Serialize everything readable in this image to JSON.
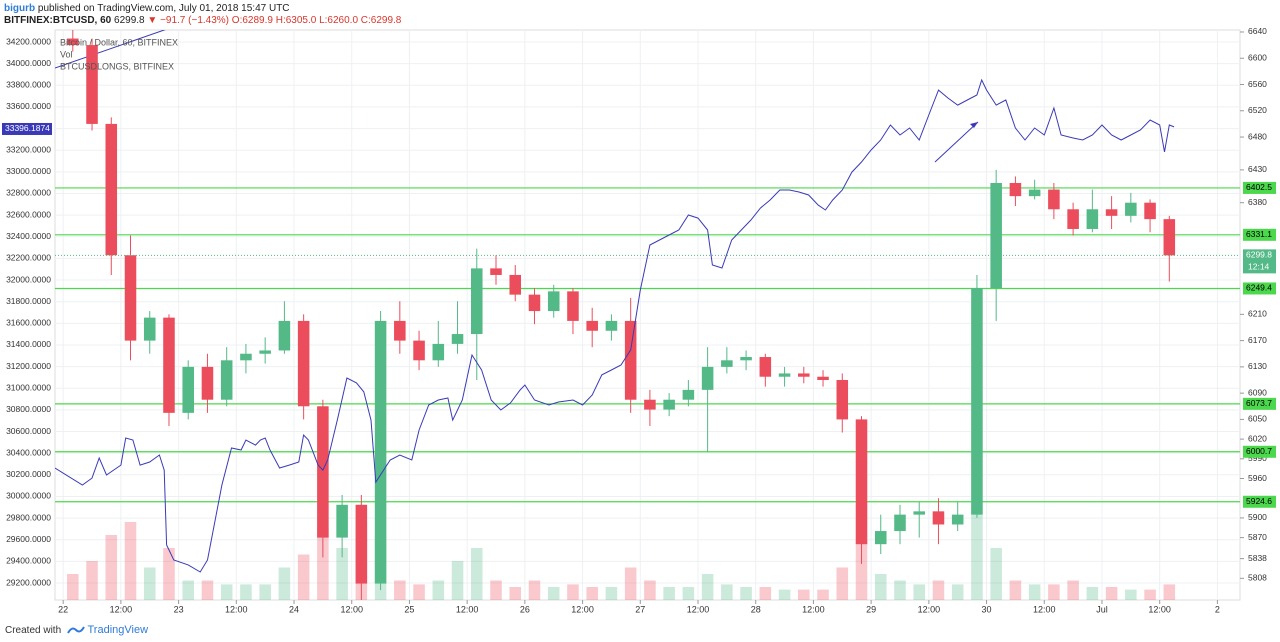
{
  "header": {
    "author": "bigurb",
    "published": "published on TradingView.com, July 01, 2018 15:47 UTC",
    "symbol": "BITFINEX:BTCUSD, 60",
    "last": "6299.8",
    "change": "▼ −91.7 (−1.43%)",
    "ohlc": "O:6289.9 H:6305.0 L:6260.0 C:6299.8"
  },
  "footer": {
    "created": "Created with",
    "brand": "TradingView"
  },
  "chart_data": {
    "type": "candlestick",
    "title": "Bitcoin / Dollar, 60, BITFINEX",
    "volume_label": "Vol",
    "up_color": "#53b987",
    "down_color": "#eb4d5c",
    "grid": true,
    "countdown": "12:14",
    "x": [
      2,
      6,
      10,
      14,
      18,
      22,
      26,
      30,
      34,
      38,
      42,
      46,
      50,
      54,
      58,
      62,
      66,
      70,
      74,
      78,
      82,
      86,
      90,
      94,
      98,
      102,
      106,
      110,
      114,
      118,
      122,
      126,
      130,
      134,
      138,
      142,
      146,
      150,
      154,
      158,
      162,
      166,
      170,
      174,
      178,
      182,
      186,
      190,
      194,
      198,
      202,
      206,
      210,
      214,
      218,
      222,
      226,
      230
    ],
    "open": [
      6630,
      6620,
      6500,
      6300,
      6170,
      6205,
      6060,
      6130,
      6080,
      6140,
      6150,
      6155,
      6200,
      6070,
      5870,
      5920,
      5800,
      6200,
      6170,
      6140,
      6165,
      6180,
      6280,
      6270,
      6240,
      6215,
      6245,
      6200,
      6185,
      6200,
      6080,
      6065,
      6080,
      6095,
      6130,
      6140,
      6145,
      6115,
      6120,
      6115,
      6110,
      6050,
      5860,
      5880,
      5905,
      5910,
      5890,
      5905,
      6250,
      6410,
      6390,
      6400,
      6370,
      6340,
      6370,
      6360,
      6380,
      6355
    ],
    "high": [
      6650,
      6630,
      6510,
      6330,
      6215,
      6210,
      6140,
      6150,
      6160,
      6165,
      6175,
      6230,
      6210,
      6080,
      5935,
      5935,
      6215,
      6230,
      6185,
      6200,
      6230,
      6310,
      6300,
      6285,
      6250,
      6255,
      6250,
      6220,
      6210,
      6235,
      6095,
      6090,
      6110,
      6160,
      6160,
      6155,
      6150,
      6130,
      6130,
      6125,
      6120,
      6055,
      5905,
      5920,
      5925,
      5930,
      5925,
      6270,
      6430,
      6420,
      6415,
      6410,
      6380,
      6400,
      6390,
      6395,
      6385,
      6360
    ],
    "low": [
      6610,
      6490,
      6270,
      6140,
      6150,
      6040,
      6050,
      6060,
      6070,
      6120,
      6135,
      6150,
      6050,
      5840,
      5840,
      5775,
      5790,
      6150,
      6125,
      6130,
      6150,
      6110,
      6255,
      6230,
      6195,
      6205,
      6180,
      6160,
      6170,
      6060,
      6040,
      6055,
      6070,
      6000,
      6120,
      6125,
      6100,
      6100,
      6105,
      6100,
      6030,
      5830,
      5845,
      5860,
      5870,
      5860,
      5880,
      5900,
      6200,
      6375,
      6385,
      6355,
      6330,
      6335,
      6340,
      6350,
      6335,
      6260
    ],
    "close": [
      6620,
      6500,
      6300,
      6170,
      6205,
      6060,
      6130,
      6080,
      6140,
      6150,
      6155,
      6200,
      6070,
      5870,
      5920,
      5800,
      6200,
      6170,
      6140,
      6165,
      6180,
      6280,
      6270,
      6240,
      6215,
      6245,
      6200,
      6185,
      6200,
      6080,
      6065,
      6080,
      6095,
      6130,
      6140,
      6145,
      6115,
      6120,
      6115,
      6110,
      6050,
      5860,
      5880,
      5905,
      5910,
      5890,
      5905,
      6250,
      6410,
      6390,
      6400,
      6370,
      6340,
      6370,
      6360,
      6380,
      6355,
      6299.8
    ],
    "volume": {
      "ylim": [
        0,
        100
      ],
      "values": [
        20,
        30,
        50,
        60,
        25,
        40,
        15,
        15,
        12,
        12,
        12,
        25,
        35,
        55,
        40,
        60,
        50,
        15,
        12,
        15,
        30,
        40,
        15,
        10,
        15,
        10,
        12,
        10,
        10,
        25,
        15,
        10,
        10,
        20,
        12,
        10,
        10,
        8,
        8,
        8,
        25,
        45,
        20,
        15,
        12,
        15,
        12,
        70,
        40,
        15,
        12,
        12,
        15,
        10,
        10,
        8,
        8,
        12
      ]
    },
    "levels": [
      6402.5,
      6331.1,
      6249.4,
      6073.7,
      6000.7,
      5924.6
    ],
    "level_color": "#4cd84c",
    "xlim": [
      -1.7,
      244.7
    ],
    "xticks": [
      {
        "value": 0,
        "label": "22"
      },
      {
        "value": 12,
        "label": "12:00"
      },
      {
        "value": 24,
        "label": "23"
      },
      {
        "value": 36,
        "label": "12:00"
      },
      {
        "value": 48,
        "label": "24"
      },
      {
        "value": 60,
        "label": "12:00"
      },
      {
        "value": 72,
        "label": "25"
      },
      {
        "value": 84,
        "label": "12:00"
      },
      {
        "value": 96,
        "label": "26"
      },
      {
        "value": 108,
        "label": "12:00"
      },
      {
        "value": 120,
        "label": "27"
      },
      {
        "value": 132,
        "label": "12:00"
      },
      {
        "value": 144,
        "label": "28"
      },
      {
        "value": 156,
        "label": "12:00"
      },
      {
        "value": 168,
        "label": "29"
      },
      {
        "value": 180,
        "label": "12:00"
      },
      {
        "value": 192,
        "label": "30"
      },
      {
        "value": 204,
        "label": "12:00"
      },
      {
        "value": 216,
        "label": "Jul"
      },
      {
        "value": 228,
        "label": "12:00"
      },
      {
        "value": 240,
        "label": "2"
      }
    ],
    "ylim": [
      5775,
      6643
    ],
    "yticks": [
      6640,
      6600,
      6560,
      6520,
      6480,
      6430,
      6380,
      6210,
      6170,
      6130,
      6090,
      6050,
      6020,
      5990,
      5960,
      5900,
      5870,
      5838,
      5808
    ],
    "y2lim": [
      29043,
      34311
    ],
    "y2ticks": [
      {
        "value": 34200,
        "label": "34200.0000"
      },
      {
        "value": 34000,
        "label": "34000.0000"
      },
      {
        "value": 33800,
        "label": "33800.0000"
      },
      {
        "value": 33600,
        "label": "33600.0000"
      },
      {
        "value": 33400,
        "label": "33400.0000"
      },
      {
        "value": 33200,
        "label": "33200.0000"
      },
      {
        "value": 33000,
        "label": "33000.0000"
      },
      {
        "value": 32800,
        "label": "32800.0000"
      },
      {
        "value": 32600,
        "label": "32600.0000"
      },
      {
        "value": 32400,
        "label": "32400.0000"
      },
      {
        "value": 32200,
        "label": "32200.0000"
      },
      {
        "value": 32000,
        "label": "32000.0000"
      },
      {
        "value": 31800,
        "label": "31800.0000"
      },
      {
        "value": 31600,
        "label": "31600.0000"
      },
      {
        "value": 31400,
        "label": "31400.0000"
      },
      {
        "value": 31200,
        "label": "31200.0000"
      },
      {
        "value": 31000,
        "label": "31000.0000"
      },
      {
        "value": 30800,
        "label": "30800.0000"
      },
      {
        "value": 30600,
        "label": "30600.0000"
      },
      {
        "value": 30400,
        "label": "30400.0000"
      },
      {
        "value": 30200,
        "label": "30200.0000"
      },
      {
        "value": 30000,
        "label": "30000.0000"
      },
      {
        "value": 29800,
        "label": "29800.0000"
      },
      {
        "value": 29600,
        "label": "29600.0000"
      },
      {
        "value": 29400,
        "label": "29400.0000"
      },
      {
        "value": 29200,
        "label": "29200.0000"
      }
    ],
    "series": [
      {
        "name": "BTCUSDLONGS, BITFINEX",
        "color": "#3a3ab8",
        "axis": "y2",
        "last_value": 33396.1874,
        "x": [
          -1.7,
          4,
          6,
          7.5,
          9,
          12,
          13,
          14.5,
          16,
          18,
          20,
          21,
          21.5,
          23,
          26,
          28.5,
          30,
          33,
          35,
          37,
          38,
          40,
          41,
          42,
          43,
          45,
          47,
          49,
          50,
          51,
          53,
          54,
          55,
          57,
          59,
          61,
          62.5,
          64,
          65,
          68,
          70,
          72.5,
          74,
          76,
          78,
          80,
          81,
          83,
          85,
          87,
          89,
          91,
          93,
          95,
          96,
          98,
          101,
          103,
          106,
          108,
          110,
          112,
          114,
          116,
          118,
          120,
          122,
          124,
          126,
          128,
          130,
          132,
          134,
          135,
          137,
          139,
          141,
          143,
          145,
          147,
          149,
          151,
          153,
          155,
          157,
          158.5,
          160,
          162,
          164,
          166,
          168,
          170,
          172,
          174,
          176,
          178,
          180,
          182,
          184,
          186,
          188,
          190,
          191,
          192,
          194,
          196,
          198,
          200,
          202,
          204,
          206,
          207.5,
          210,
          212,
          214,
          216,
          218,
          220,
          222,
          224,
          226,
          228,
          229,
          230,
          231
        ],
        "values": [
          30263,
          30106,
          30170,
          30355,
          30198,
          30290,
          30540,
          30522,
          30290,
          30318,
          30383,
          30244,
          29551,
          29413,
          29367,
          29302,
          29413,
          30106,
          30448,
          30429,
          30522,
          30475,
          30522,
          30540,
          30429,
          30263,
          30290,
          30318,
          30568,
          30522,
          30290,
          30244,
          30337,
          30706,
          31095,
          31049,
          30966,
          30706,
          30133,
          30337,
          30383,
          30337,
          30614,
          30845,
          30891,
          30910,
          30706,
          30891,
          31307,
          31169,
          30891,
          30799,
          30864,
          30984,
          31030,
          30891,
          30845,
          30873,
          30891,
          30845,
          30938,
          31123,
          31169,
          31215,
          31354,
          31908,
          32324,
          32370,
          32416,
          32463,
          32601,
          32573,
          32463,
          32139,
          32111,
          32370,
          32463,
          32555,
          32666,
          32740,
          32832,
          32832,
          32814,
          32786,
          32693,
          32647,
          32740,
          32832,
          32998,
          33091,
          33202,
          33294,
          33433,
          33341,
          33405,
          33294,
          33525,
          33756,
          33682,
          33617,
          33664,
          33710,
          33849,
          33756,
          33617,
          33664,
          33405,
          33294,
          33405,
          33341,
          33590,
          33341,
          33313,
          33294,
          33341,
          33433,
          33341,
          33294,
          33341,
          33387,
          33479,
          33433,
          33184,
          33433,
          33415
        ]
      }
    ]
  }
}
